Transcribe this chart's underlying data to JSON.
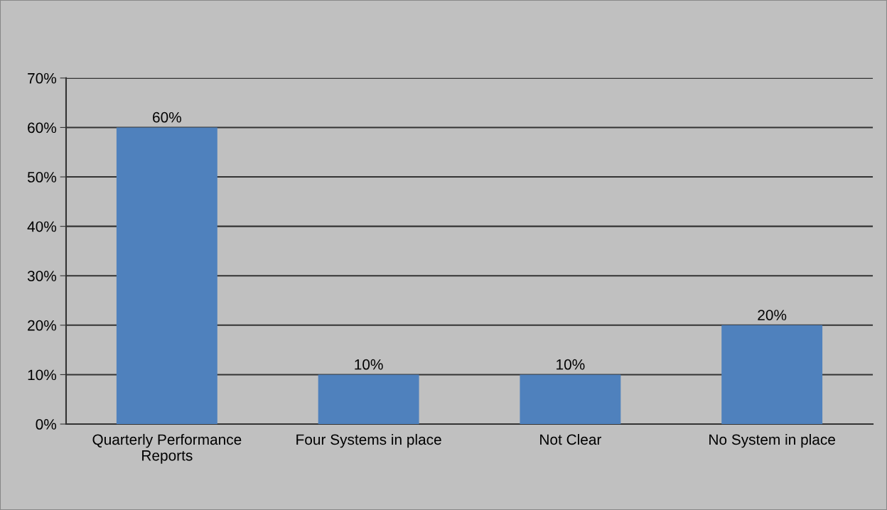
{
  "chart_data": {
    "type": "bar",
    "categories": [
      "Quarterly Performance\nReports",
      "Four Systems in place",
      "Not Clear",
      "No System in place"
    ],
    "values": [
      60,
      10,
      10,
      20
    ],
    "value_labels": [
      "60%",
      "10%",
      "10%",
      "20%"
    ],
    "color": "#4f81bd",
    "ylim": [
      0,
      70
    ],
    "yticks": [
      {
        "value": 0,
        "label": "0%"
      },
      {
        "value": 10,
        "label": "10%"
      },
      {
        "value": 20,
        "label": "20%"
      },
      {
        "value": 30,
        "label": "30%"
      },
      {
        "value": 40,
        "label": "40%"
      },
      {
        "value": 50,
        "label": "50%"
      },
      {
        "value": 60,
        "label": "60%"
      },
      {
        "value": 70,
        "label": "70%"
      }
    ],
    "grid": "y"
  }
}
